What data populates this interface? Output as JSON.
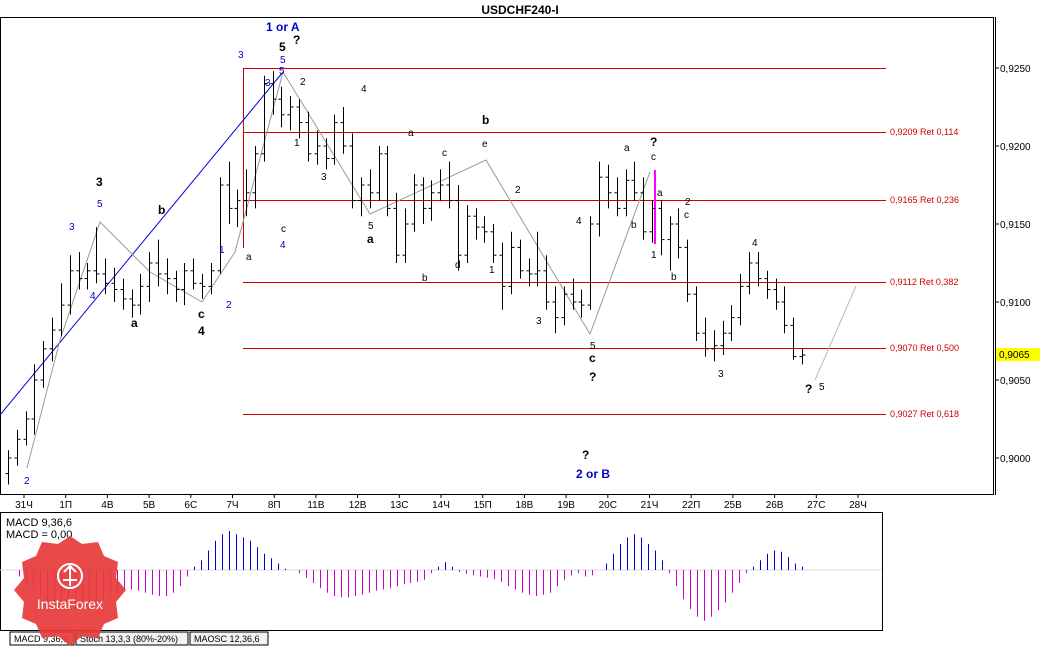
{
  "title": "USDCHF240-I",
  "current_price": "0,9065",
  "price_axis_ticks": [
    "0,9250",
    "0,9200",
    "0,9150",
    "0,9100",
    "0,9050",
    "0,9000"
  ],
  "date_axis_ticks": [
    "31Ч",
    "1П",
    "4В",
    "5В",
    "6С",
    "7Ч",
    "8П",
    "11В",
    "12В",
    "13С",
    "14Ч",
    "15П",
    "18В",
    "19В",
    "20С",
    "21Ч",
    "22П",
    "25В",
    "26В",
    "27С",
    "28Ч"
  ],
  "fib_levels": [
    {
      "label": "",
      "price": 0.925
    },
    {
      "label": "0,9209 Ret 0,114",
      "price": 0.9209
    },
    {
      "label": "0,9165 Ret 0,236",
      "price": 0.9165
    },
    {
      "label": "0,9112 Ret 0,382",
      "price": 0.9112
    },
    {
      "label": "0,9070 Ret 0,500",
      "price": 0.907
    },
    {
      "label": "0,9027 Ret 0,618",
      "price": 0.9027
    }
  ],
  "indicator_labels": {
    "macd_main": "MACD 9,36,6",
    "macd_signal": "MACD = 0,00"
  },
  "indicator_tabs": [
    "MACD 9,36,6",
    "Stoch 13,3,3 (80%-20%)",
    "MAOSC 12,36,6"
  ],
  "logo_text": "InstaForex",
  "wave_labels": [
    {
      "t": "1 or A",
      "c": "#0000cc",
      "b": true
    },
    {
      "t": "5",
      "c": "#000000",
      "b": true
    },
    {
      "t": "?",
      "c": "#000000",
      "b": true
    },
    {
      "t": "3",
      "c": "#0000cc"
    },
    {
      "t": "5",
      "c": "#0000cc"
    },
    {
      "t": "2",
      "c": "#000000"
    },
    {
      "t": "1",
      "c": "#000000"
    },
    {
      "t": "4",
      "c": "#000000"
    },
    {
      "t": "3",
      "c": "#000000"
    },
    {
      "t": "5",
      "c": "#000000"
    },
    {
      "t": "a",
      "c": "#000000",
      "b": true
    },
    {
      "t": "a",
      "c": "#000000"
    },
    {
      "t": "b",
      "c": "#000000",
      "b": true
    },
    {
      "t": "e",
      "c": "#000000"
    },
    {
      "t": "c",
      "c": "#000000"
    },
    {
      "t": "d",
      "c": "#000000"
    },
    {
      "t": "b",
      "c": "#000000"
    },
    {
      "t": "2",
      "c": "#000000"
    },
    {
      "t": "1",
      "c": "#000000"
    },
    {
      "t": "3",
      "c": "#000000"
    },
    {
      "t": "4",
      "c": "#000000"
    },
    {
      "t": "5",
      "c": "#000000"
    },
    {
      "t": "c",
      "c": "#000000",
      "b": true
    },
    {
      "t": "?",
      "c": "#000000",
      "b": true
    },
    {
      "t": "?",
      "c": "#000000",
      "b": true
    },
    {
      "t": "2 or B",
      "c": "#0000cc",
      "b": true
    },
    {
      "t": "a",
      "c": "#000000"
    },
    {
      "t": "?",
      "c": "#000000",
      "b": true
    },
    {
      "t": "c",
      "c": "#000000"
    },
    {
      "t": "b",
      "c": "#000000"
    },
    {
      "t": "a",
      "c": "#000000"
    },
    {
      "t": "1",
      "c": "#000000"
    },
    {
      "t": "b",
      "c": "#000000"
    },
    {
      "t": "2",
      "c": "#000000"
    },
    {
      "t": "c",
      "c": "#000000"
    },
    {
      "t": "3",
      "c": "#000000"
    },
    {
      "t": "4",
      "c": "#000000"
    },
    {
      "t": "?",
      "c": "#000000",
      "b": true
    },
    {
      "t": "5",
      "c": "#000000"
    },
    {
      "t": "3",
      "c": "#000000",
      "b": true
    },
    {
      "t": "5",
      "c": "#0000cc"
    },
    {
      "t": "3",
      "c": "#0000cc"
    },
    {
      "t": "4",
      "c": "#0000cc"
    },
    {
      "t": "a",
      "c": "#000000",
      "b": true
    },
    {
      "t": "b",
      "c": "#000000",
      "b": true
    },
    {
      "t": "c",
      "c": "#000000",
      "b": true
    },
    {
      "t": "4",
      "c": "#000000",
      "b": true
    },
    {
      "t": "1",
      "c": "#0000cc"
    },
    {
      "t": "2",
      "c": "#0000cc"
    },
    {
      "t": "a",
      "c": "#000000"
    },
    {
      "t": "3",
      "c": "#0000cc"
    },
    {
      "t": "5",
      "c": "#0000cc"
    },
    {
      "t": "c",
      "c": "#000000"
    },
    {
      "t": "4",
      "c": "#0000cc"
    },
    {
      "t": "2",
      "c": "#0000cc"
    }
  ],
  "chart_data": {
    "type": "ohlc",
    "title": "USDCHF240-I",
    "ylim": [
      0.8977,
      0.9297
    ],
    "bars": [
      [
        0.899,
        0.9005,
        0.8983,
        0.9
      ],
      [
        0.9,
        0.9018,
        0.8995,
        0.9012
      ],
      [
        0.9012,
        0.903,
        0.9008,
        0.9025
      ],
      [
        0.9025,
        0.906,
        0.9015,
        0.905
      ],
      [
        0.905,
        0.9075,
        0.9045,
        0.907
      ],
      [
        0.907,
        0.909,
        0.9062,
        0.9082
      ],
      [
        0.9082,
        0.9112,
        0.9078,
        0.9098
      ],
      [
        0.9098,
        0.913,
        0.9092,
        0.912
      ],
      [
        0.912,
        0.9132,
        0.9108,
        0.9115
      ],
      [
        0.9115,
        0.9125,
        0.9108,
        0.912
      ],
      [
        0.912,
        0.9148,
        0.9112,
        0.9118
      ],
      [
        0.9118,
        0.9128,
        0.9105,
        0.9112
      ],
      [
        0.9112,
        0.9122,
        0.91,
        0.9108
      ],
      [
        0.9108,
        0.9115,
        0.9095,
        0.9102
      ],
      [
        0.9102,
        0.9108,
        0.909,
        0.9098
      ],
      [
        0.9098,
        0.9118,
        0.9092,
        0.911
      ],
      [
        0.911,
        0.9132,
        0.91,
        0.9125
      ],
      [
        0.9125,
        0.914,
        0.911,
        0.9118
      ],
      [
        0.9118,
        0.9128,
        0.9105,
        0.9115
      ],
      [
        0.9115,
        0.912,
        0.91,
        0.9108
      ],
      [
        0.9108,
        0.9125,
        0.9098,
        0.912
      ],
      [
        0.912,
        0.9128,
        0.9108,
        0.9112
      ],
      [
        0.9112,
        0.9118,
        0.9102,
        0.911
      ],
      [
        0.911,
        0.9125,
        0.9105,
        0.912
      ],
      [
        0.912,
        0.918,
        0.9118,
        0.9175
      ],
      [
        0.9175,
        0.919,
        0.915,
        0.916
      ],
      [
        0.916,
        0.9172,
        0.9148,
        0.9165
      ],
      [
        0.9165,
        0.9185,
        0.9155,
        0.917
      ],
      [
        0.917,
        0.92,
        0.916,
        0.9195
      ],
      [
        0.9195,
        0.9245,
        0.919,
        0.924
      ],
      [
        0.924,
        0.9248,
        0.922,
        0.923
      ],
      [
        0.923,
        0.9238,
        0.9212,
        0.922
      ],
      [
        0.922,
        0.9232,
        0.921,
        0.9225
      ],
      [
        0.9225,
        0.923,
        0.9205,
        0.9215
      ],
      [
        0.9215,
        0.9222,
        0.919,
        0.9195
      ],
      [
        0.9195,
        0.921,
        0.9188,
        0.92
      ],
      [
        0.92,
        0.9205,
        0.9185,
        0.9192
      ],
      [
        0.9192,
        0.922,
        0.9188,
        0.9215
      ],
      [
        0.9215,
        0.9225,
        0.9195,
        0.92
      ],
      [
        0.92,
        0.9208,
        0.916,
        0.9165
      ],
      [
        0.9165,
        0.918,
        0.9155,
        0.9175
      ],
      [
        0.9175,
        0.9185,
        0.916,
        0.917
      ],
      [
        0.917,
        0.92,
        0.9165,
        0.9195
      ],
      [
        0.9195,
        0.92,
        0.9155,
        0.916
      ],
      [
        0.916,
        0.917,
        0.9125,
        0.913
      ],
      [
        0.913,
        0.916,
        0.9125,
        0.915
      ],
      [
        0.915,
        0.9182,
        0.9145,
        0.9175
      ],
      [
        0.9175,
        0.918,
        0.915,
        0.916
      ],
      [
        0.916,
        0.9178,
        0.9152,
        0.917
      ],
      [
        0.917,
        0.9185,
        0.9165,
        0.9175
      ],
      [
        0.9175,
        0.919,
        0.916,
        0.9165
      ],
      [
        0.9165,
        0.9175,
        0.912,
        0.913
      ],
      [
        0.913,
        0.9162,
        0.9125,
        0.9155
      ],
      [
        0.9155,
        0.916,
        0.914,
        0.9148
      ],
      [
        0.9148,
        0.9155,
        0.9138,
        0.9145
      ],
      [
        0.9145,
        0.915,
        0.9125,
        0.913
      ],
      [
        0.913,
        0.9138,
        0.9095,
        0.911
      ],
      [
        0.911,
        0.9145,
        0.9105,
        0.9135
      ],
      [
        0.9135,
        0.914,
        0.9115,
        0.912
      ],
      [
        0.912,
        0.9128,
        0.911,
        0.9118
      ],
      [
        0.9118,
        0.9145,
        0.911,
        0.912
      ],
      [
        0.912,
        0.913,
        0.9095,
        0.91
      ],
      [
        0.91,
        0.911,
        0.908,
        0.909
      ],
      [
        0.909,
        0.911,
        0.9085,
        0.9105
      ],
      [
        0.9105,
        0.9115,
        0.9095,
        0.91
      ],
      [
        0.91,
        0.9108,
        0.909,
        0.9098
      ],
      [
        0.9098,
        0.9155,
        0.9095,
        0.915
      ],
      [
        0.915,
        0.919,
        0.9142,
        0.918
      ],
      [
        0.918,
        0.9188,
        0.916,
        0.917
      ],
      [
        0.917,
        0.918,
        0.9155,
        0.916
      ],
      [
        0.916,
        0.9185,
        0.9155,
        0.9178
      ],
      [
        0.9178,
        0.919,
        0.9165,
        0.917
      ],
      [
        0.917,
        0.918,
        0.914,
        0.9145
      ],
      [
        0.9145,
        0.9165,
        0.9138,
        0.916
      ],
      [
        0.916,
        0.9165,
        0.913,
        0.914
      ],
      [
        0.914,
        0.9155,
        0.912,
        0.915
      ],
      [
        0.915,
        0.916,
        0.9128,
        0.9135
      ],
      [
        0.9135,
        0.914,
        0.91,
        0.9105
      ],
      [
        0.9105,
        0.911,
        0.9075,
        0.908
      ],
      [
        0.908,
        0.909,
        0.9065,
        0.907
      ],
      [
        0.907,
        0.9082,
        0.9062,
        0.9072
      ],
      [
        0.9072,
        0.9088,
        0.9066,
        0.908
      ],
      [
        0.908,
        0.9098,
        0.9075,
        0.909
      ],
      [
        0.909,
        0.9118,
        0.9085,
        0.911
      ],
      [
        0.911,
        0.9132,
        0.9105,
        0.9125
      ],
      [
        0.9125,
        0.9132,
        0.911,
        0.9115
      ],
      [
        0.9115,
        0.912,
        0.9102,
        0.9108
      ],
      [
        0.9108,
        0.9115,
        0.9095,
        0.91
      ],
      [
        0.91,
        0.911,
        0.908,
        0.9085
      ],
      [
        0.9085,
        0.909,
        0.9063,
        0.9065
      ],
      [
        0.9065,
        0.907,
        0.906,
        0.9066
      ]
    ],
    "macd": [
      0,
      -0.1,
      -0.2,
      -0.3,
      -0.4,
      -0.5,
      -0.55,
      -0.6,
      -0.62,
      -0.62,
      -0.6,
      -0.55,
      -0.5,
      -0.45,
      -0.4,
      -0.35,
      -0.3,
      -0.3,
      -0.32,
      -0.35,
      -0.38,
      -0.4,
      -0.4,
      -0.35,
      -0.25,
      -0.1,
      0.05,
      0.15,
      0.3,
      0.45,
      0.55,
      0.6,
      0.55,
      0.5,
      0.45,
      0.35,
      0.25,
      0.18,
      0.1,
      0.02,
      0,
      -0.05,
      -0.12,
      -0.2,
      -0.28,
      -0.35,
      -0.4,
      -0.42,
      -0.42,
      -0.4,
      -0.38,
      -0.35,
      -0.32,
      -0.3,
      -0.28,
      -0.25,
      -0.22,
      -0.2,
      -0.18,
      -0.15,
      -0.05,
      0.05,
      0.12,
      0.05,
      -0.03,
      -0.06,
      -0.08,
      -0.1,
      -0.12,
      -0.14,
      -0.18,
      -0.25,
      -0.3,
      -0.35,
      -0.38,
      -0.4,
      -0.38,
      -0.35,
      -0.25,
      -0.15,
      -0.08,
      -0.05,
      -0.1,
      -0.08,
      0,
      0.1,
      0.25,
      0.4,
      0.5,
      0.55,
      0.5,
      0.4,
      0.3,
      0.15,
      -0.05,
      -0.25,
      -0.45,
      -0.6,
      -0.72,
      -0.78,
      -0.72,
      -0.62,
      -0.5,
      -0.35,
      -0.2,
      -0.05,
      0.05,
      0.15,
      0.25,
      0.3,
      0.28,
      0.2,
      0.1,
      0.05
    ]
  }
}
